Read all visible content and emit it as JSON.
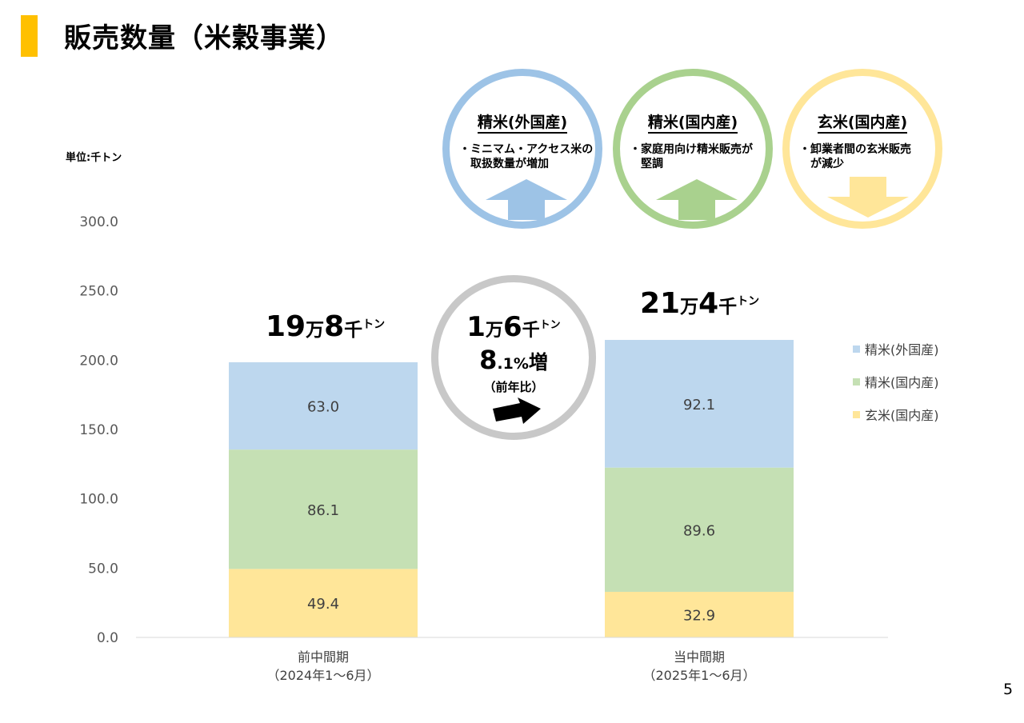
{
  "page": {
    "title": "販売数量（米穀事業）",
    "unit_label": "単位:千トン",
    "page_number": "5"
  },
  "colors": {
    "accent": "#FFC000",
    "imported_polished": "#BDD7EE",
    "domestic_polished": "#C5E0B4",
    "domestic_brown": "#FFE699",
    "ring_blue": "#9DC3E6",
    "ring_green": "#A9D18E",
    "ring_yellow": "#FFE699",
    "ring_gray": "#C8C8C8"
  },
  "chart_data": {
    "type": "bar",
    "stacked": true,
    "categories": [
      "前中間期\n（2024年1～6月）",
      "当中間期\n（2025年1～6月）"
    ],
    "series": [
      {
        "name": "玄米(国内産)",
        "values": [
          49.4,
          32.9
        ]
      },
      {
        "name": "精米(国内産)",
        "values": [
          86.1,
          89.6
        ]
      },
      {
        "name": "精米(外国産)",
        "values": [
          63.0,
          92.1
        ]
      }
    ],
    "yticks": [
      "0.0",
      "50.0",
      "100.0",
      "150.0",
      "200.0",
      "250.0",
      "300.0"
    ],
    "ylim": [
      0,
      300
    ],
    "legend_position": "right",
    "grid": false
  },
  "totals": {
    "prev": {
      "n1": "19",
      "u1": "万",
      "n2": "8",
      "u2": "千",
      "u3": "トン"
    },
    "curr": {
      "n1": "21",
      "u1": "万",
      "n2": "4",
      "u2": "千",
      "u3": "トン"
    }
  },
  "change": {
    "n1": "1",
    "u1": "万",
    "n2": "6",
    "u2": "千",
    "u3": "トン",
    "pct_int": "8",
    "pct_dec": ".1%",
    "pct_suffix": "増",
    "note": "（前年比）"
  },
  "segments": [
    {
      "title": "精米(外国産)",
      "note_line1": "・ミニマム・アクセス米の",
      "note_line2": "取扱数量が増加",
      "direction": "up"
    },
    {
      "title": "精米(国内産)",
      "note_line1": "・家庭用向け精米販売が",
      "note_line2": "堅調",
      "direction": "up"
    },
    {
      "title": "玄米(国内産)",
      "note_line1": "・卸業者間の玄米販売",
      "note_line2": "が減少",
      "direction": "down"
    }
  ]
}
